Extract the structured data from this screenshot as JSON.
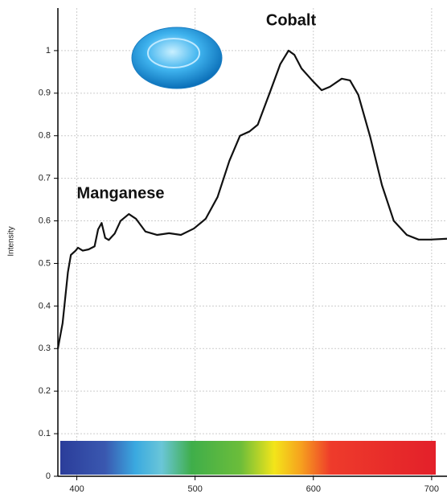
{
  "chart_data": {
    "type": "line",
    "y_label": "Intensity",
    "annotations": [
      "Cobalt",
      "Manganese"
    ],
    "x": [
      384,
      388,
      392.5,
      395,
      399,
      401,
      405,
      410,
      415,
      418,
      421,
      424,
      427,
      432,
      437,
      444,
      450,
      458,
      468,
      478,
      488,
      499,
      509,
      519,
      529,
      538,
      546,
      553,
      563,
      572,
      579,
      584,
      590,
      599,
      607,
      614,
      624,
      631,
      638,
      648,
      658,
      668,
      679,
      689,
      699,
      713
    ],
    "series": [
      {
        "name": "Intensity",
        "color": "#111111",
        "values": [
          0.3,
          0.36,
          0.48,
          0.52,
          0.53,
          0.537,
          0.53,
          0.533,
          0.54,
          0.58,
          0.595,
          0.56,
          0.555,
          0.57,
          0.6,
          0.616,
          0.605,
          0.575,
          0.567,
          0.571,
          0.567,
          0.582,
          0.605,
          0.656,
          0.741,
          0.8,
          0.81,
          0.826,
          0.9,
          0.968,
          1.0,
          0.99,
          0.958,
          0.93,
          0.907,
          0.915,
          0.934,
          0.93,
          0.896,
          0.798,
          0.684,
          0.6,
          0.567,
          0.556,
          0.556,
          0.558
        ]
      }
    ],
    "xlim": [
      384,
      713
    ],
    "xticks": [
      400,
      500,
      600,
      700
    ],
    "ylim": [
      0,
      1.1
    ],
    "yticks": [
      0,
      0.1,
      0.2,
      0.3,
      0.4,
      0.5,
      0.6,
      0.7,
      0.8,
      0.9,
      1
    ],
    "grid": true
  }
}
